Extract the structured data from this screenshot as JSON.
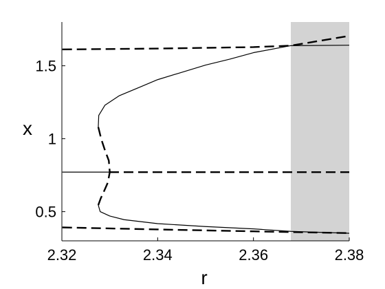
{
  "chart_data": {
    "type": "line",
    "title": "",
    "xlabel": "r",
    "ylabel": "x",
    "xlim": [
      2.32,
      2.38
    ],
    "ylim": [
      0.3,
      1.8
    ],
    "xticks": [
      "2.32",
      "2.34",
      "2.36",
      "2.38"
    ],
    "yticks": [
      "0.5",
      "1",
      "1.5"
    ],
    "grid": false,
    "legend": "none",
    "shaded_region": {
      "x": [
        2.3678,
        2.38
      ],
      "color": "#d3d3d3"
    },
    "series": [
      {
        "style": "solid",
        "color": "#000000",
        "points": [
          [
            2.3201,
            0.771
          ],
          [
            2.3299,
            0.771
          ]
        ]
      },
      {
        "style": "dashed",
        "color": "#000000",
        "points": [
          [
            2.3299,
            0.771
          ],
          [
            2.38,
            0.771
          ]
        ]
      },
      {
        "style": "dashed",
        "color": "#000000",
        "points": [
          [
            2.3201,
            1.612
          ],
          [
            2.34,
            1.618
          ],
          [
            2.36,
            1.628
          ],
          [
            2.3678,
            1.638
          ],
          [
            2.38,
            1.705
          ]
        ]
      },
      {
        "style": "solid",
        "color": "#000000",
        "points": [
          [
            2.3678,
            1.638
          ],
          [
            2.38,
            1.641
          ]
        ]
      },
      {
        "style": "dashed",
        "color": "#000000",
        "points": [
          [
            2.3201,
            0.392
          ],
          [
            2.34,
            0.378
          ],
          [
            2.36,
            0.365
          ],
          [
            2.3678,
            0.36
          ],
          [
            2.38,
            0.353
          ]
        ]
      },
      {
        "style": "solid",
        "color": "#000000",
        "points": [
          [
            2.3276,
            0.545
          ],
          [
            2.328,
            0.5
          ],
          [
            2.33,
            0.47
          ],
          [
            2.333,
            0.445
          ],
          [
            2.34,
            0.418
          ],
          [
            2.35,
            0.398
          ],
          [
            2.36,
            0.382
          ],
          [
            2.3678,
            0.365
          ],
          [
            2.38,
            0.352
          ]
        ]
      },
      {
        "style": "solid",
        "color": "#000000",
        "points": [
          [
            2.3276,
            1.08
          ],
          [
            2.3277,
            1.16
          ],
          [
            2.329,
            1.23
          ],
          [
            2.332,
            1.295
          ],
          [
            2.336,
            1.35
          ],
          [
            2.34,
            1.405
          ],
          [
            2.345,
            1.455
          ],
          [
            2.35,
            1.505
          ],
          [
            2.355,
            1.545
          ],
          [
            2.36,
            1.59
          ],
          [
            2.3678,
            1.638
          ]
        ]
      },
      {
        "style": "dashed",
        "color": "#000000",
        "points": [
          [
            2.3276,
            1.08
          ],
          [
            2.3282,
            1.0
          ],
          [
            2.329,
            0.92
          ],
          [
            2.3298,
            0.85
          ],
          [
            2.33,
            0.771
          ],
          [
            2.3296,
            0.7
          ],
          [
            2.3288,
            0.64
          ],
          [
            2.3281,
            0.59
          ],
          [
            2.3276,
            0.545
          ]
        ]
      }
    ]
  }
}
